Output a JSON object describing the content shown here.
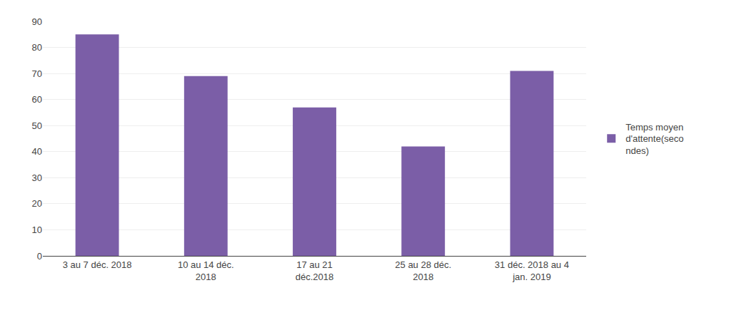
{
  "chart_data": {
    "type": "bar",
    "categories": [
      "3 au 7 déc. 2018",
      "10 au 14 déc.\n2018",
      "17 au 21\ndéc.2018",
      "25 au 28 déc.\n2018",
      "31 déc. 2018 au 4\njan. 2019"
    ],
    "series": [
      {
        "name": "Temps moyen\nd'attente(seco\nndes)",
        "color": "#7B5EA7",
        "values": [
          85,
          69,
          57,
          42,
          71
        ]
      }
    ],
    "ylim": [
      0,
      90
    ],
    "yticks": [
      0,
      10,
      20,
      30,
      40,
      50,
      60,
      70,
      80,
      90
    ],
    "grid": true,
    "legend": "right"
  }
}
